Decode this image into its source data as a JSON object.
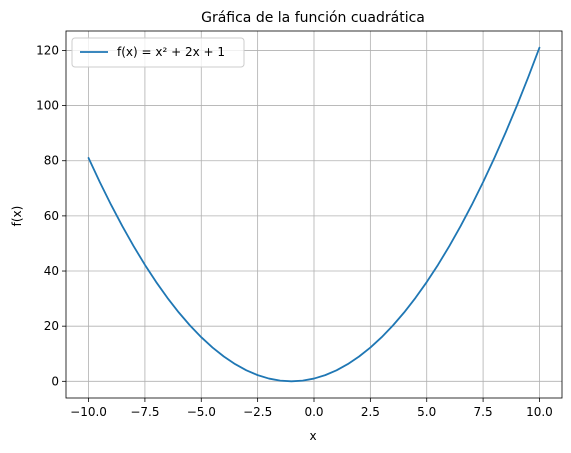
{
  "chart_data": {
    "type": "line",
    "title": "Gráfica de la función cuadrática",
    "xlabel": "x",
    "ylabel": "f(x)",
    "xlim": [
      -11.0,
      11.0
    ],
    "ylim": [
      -6.05,
      127.05
    ],
    "grid": true,
    "legend_position": "upper-left",
    "x_ticks": [
      -10.0,
      -7.5,
      -5.0,
      -2.5,
      0.0,
      2.5,
      5.0,
      7.5,
      10.0
    ],
    "x_tick_labels": [
      "−10.0",
      "−7.5",
      "−5.0",
      "−2.5",
      "0.0",
      "2.5",
      "5.0",
      "7.5",
      "10.0"
    ],
    "y_ticks": [
      0,
      20,
      40,
      60,
      80,
      100,
      120
    ],
    "y_tick_labels": [
      "0",
      "20",
      "40",
      "60",
      "80",
      "100",
      "120"
    ],
    "series": [
      {
        "name": "f(x) = x² + 2x + 1",
        "color": "#1f77b4",
        "x": [
          -10,
          -9.5,
          -9,
          -8.5,
          -8,
          -7.5,
          -7,
          -6.5,
          -6,
          -5.5,
          -5,
          -4.5,
          -4,
          -3.5,
          -3,
          -2.5,
          -2,
          -1.5,
          -1,
          -0.5,
          0,
          0.5,
          1,
          1.5,
          2,
          2.5,
          3,
          3.5,
          4,
          4.5,
          5,
          5.5,
          6,
          6.5,
          7,
          7.5,
          8,
          8.5,
          9,
          9.5,
          10
        ],
        "y": [
          81,
          72.25,
          64,
          56.25,
          49,
          42.25,
          36,
          30.25,
          25,
          20.25,
          16,
          12.25,
          9,
          6.25,
          4,
          2.25,
          1,
          0.25,
          0,
          0.25,
          1,
          2.25,
          4,
          6.25,
          9,
          12.25,
          16,
          20.25,
          25,
          30.25,
          36,
          42.25,
          49,
          56.25,
          64,
          72.25,
          81,
          90.25,
          100,
          110.25,
          121
        ]
      }
    ]
  }
}
